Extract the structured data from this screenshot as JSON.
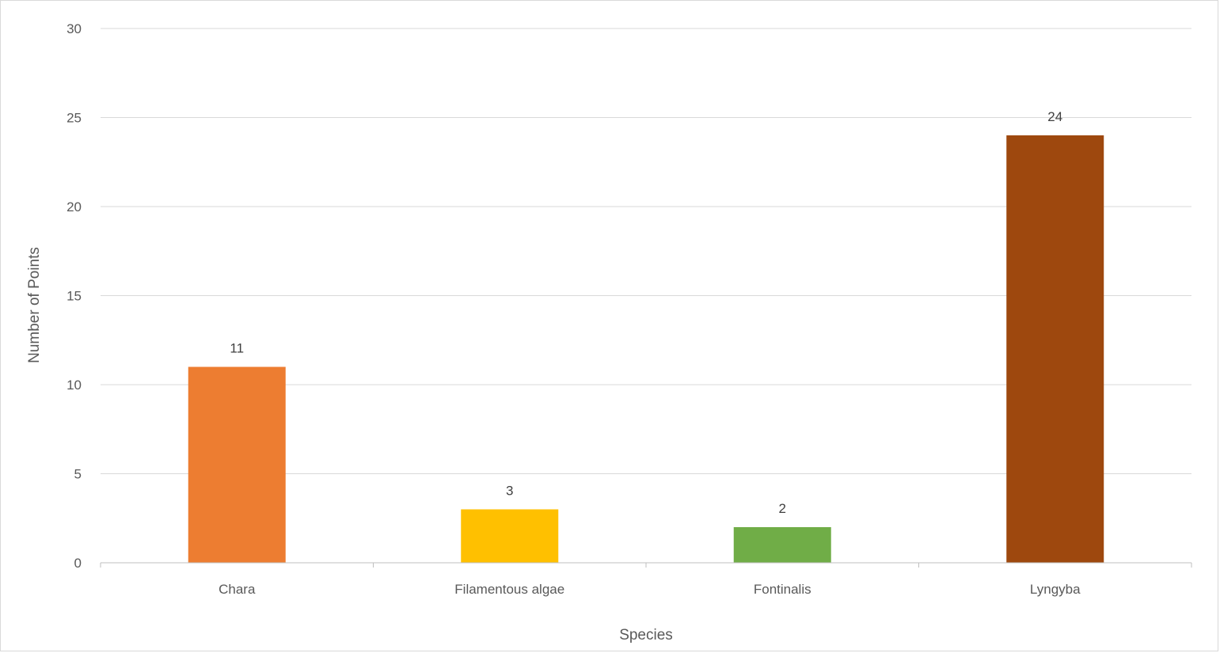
{
  "chart_data": {
    "type": "bar",
    "categories": [
      "Chara",
      "Filamentous algae",
      "Fontinalis",
      "Lyngyba"
    ],
    "values": [
      11,
      3,
      2,
      24
    ],
    "colors": [
      "#ED7D31",
      "#FFC000",
      "#70AD47",
      "#9E480E"
    ],
    "title": "",
    "xlabel": "Species",
    "ylabel": "Number of Points",
    "ylim": [
      0,
      30
    ],
    "yticks": [
      0,
      5,
      10,
      15,
      20,
      25,
      30
    ],
    "grid": true,
    "data_labels": true,
    "gridline_color": "#d9d9d9",
    "axis_color": "#bfbfbf"
  }
}
